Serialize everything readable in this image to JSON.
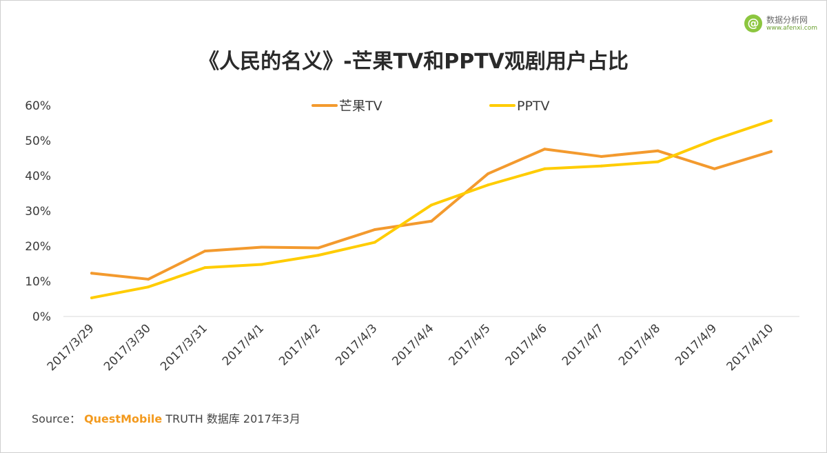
{
  "logo": {
    "mark": "@",
    "cn": "数据分析网",
    "en": "www.afenxi.com"
  },
  "source": {
    "label": "Source：",
    "brand": "QuestMobile",
    "rest": " TRUTH 数据库 2017年3月"
  },
  "colors": {
    "series1": "#F39A2E",
    "series2": "#FFCC00",
    "axis": "#d9d9d9",
    "text": "#3a3a3a"
  },
  "chart_data": {
    "type": "line",
    "title": "《人民的名义》-芒果TV和PPTV观剧用户占比",
    "categories": [
      "2017/3/29",
      "2017/3/30",
      "2017/3/31",
      "2017/4/1",
      "2017/4/2",
      "2017/4/3",
      "2017/4/4",
      "2017/4/5",
      "2017/4/6",
      "2017/4/7",
      "2017/4/8",
      "2017/4/9",
      "2017/4/10"
    ],
    "series": [
      {
        "name": "芒果TV",
        "color": "#F39A2E",
        "values": [
          12.3,
          10.6,
          18.6,
          19.7,
          19.5,
          24.7,
          27.1,
          40.6,
          47.6,
          45.5,
          47.1,
          42.0,
          46.9
        ]
      },
      {
        "name": "PPTV",
        "color": "#FFCC00",
        "values": [
          5.3,
          8.4,
          13.9,
          14.8,
          17.4,
          21.1,
          31.7,
          37.4,
          42.0,
          42.8,
          44.0,
          50.3,
          55.7
        ]
      }
    ],
    "ylim": [
      0,
      60
    ],
    "yticks": [
      "0%",
      "10%",
      "20%",
      "30%",
      "40%",
      "50%",
      "60%"
    ],
    "xlabel": "",
    "ylabel": "",
    "legend_position": "top-center",
    "grid": false
  }
}
